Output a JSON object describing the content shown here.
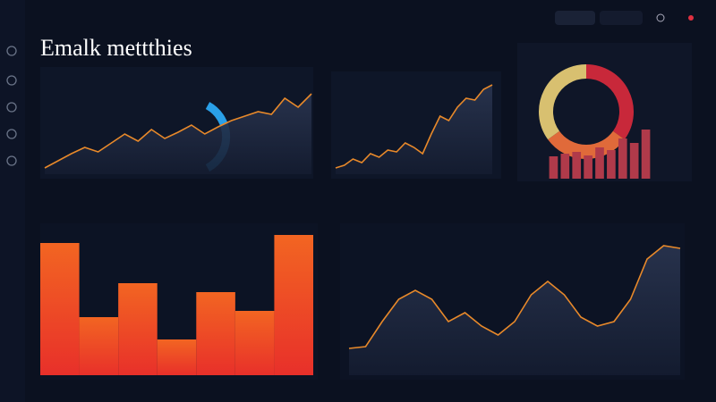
{
  "header": {
    "title": "Emalk mettthies"
  },
  "panels": [
    {
      "type": "line",
      "color": "#e8892a",
      "ylim": [
        0,
        100
      ],
      "values": [
        7,
        15,
        23,
        30,
        25,
        35,
        45,
        37,
        50,
        40,
        47,
        55,
        45,
        53,
        60,
        65,
        70,
        67,
        85,
        75,
        90
      ]
    },
    {
      "type": "line",
      "color": "#e8892a",
      "ylim": [
        0,
        105
      ],
      "values": [
        7,
        10,
        17,
        13,
        23,
        19,
        27,
        25,
        35,
        30,
        23,
        45,
        65,
        60,
        75,
        85,
        83,
        95,
        100
      ]
    },
    {
      "type": "pie",
      "colors": [
        "#c8283a",
        "#e06a3a",
        "#d8c070"
      ],
      "values": [
        35,
        30,
        35
      ]
    },
    {
      "type": "bar",
      "color": "#b03a4a",
      "ylim": [
        0,
        60
      ],
      "values": [
        25,
        28,
        30,
        26,
        35,
        32,
        45,
        40,
        55
      ]
    },
    {
      "type": "bar",
      "color": "#f0501e",
      "ylim": [
        0,
        160
      ],
      "values": [
        148,
        65,
        103,
        40,
        93,
        72,
        157
      ]
    },
    {
      "type": "line",
      "color": "#e8892a",
      "ylim": [
        0,
        160
      ],
      "values": [
        30,
        32,
        60,
        85,
        95,
        85,
        60,
        70,
        55,
        45,
        60,
        90,
        105,
        90,
        65,
        55,
        60,
        85,
        130,
        145,
        142
      ]
    }
  ]
}
